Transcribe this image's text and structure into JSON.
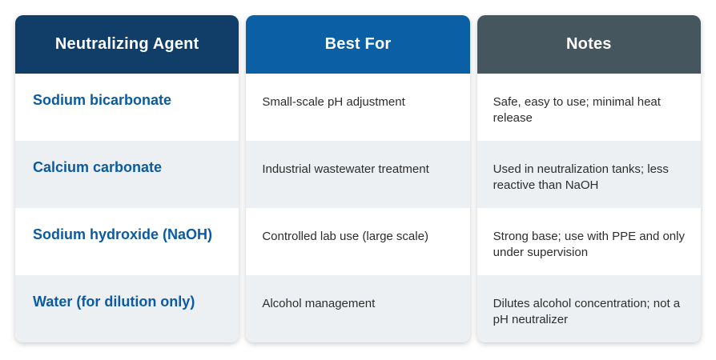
{
  "chart_data": {
    "type": "table",
    "columns": [
      "Neutralizing Agent",
      "Best For",
      "Notes"
    ],
    "rows": [
      [
        "Sodium bicarbonate",
        "Small-scale pH adjustment",
        "Safe, easy to use; minimal heat release"
      ],
      [
        "Calcium carbonate",
        "Industrial wastewater treatment",
        "Used in neutralization tanks; less reactive than NaOH"
      ],
      [
        "Sodium hydroxide (NaOH)",
        "Controlled lab use (large scale)",
        "Strong base; use with PPE and only under supervision"
      ],
      [
        "Water (for dilution only)",
        "Alcohol management",
        "Dilutes alcohol concentration; not a pH neutralizer"
      ]
    ],
    "title": "",
    "legend_position": "none"
  },
  "colors": {
    "canvas_bg": "#ffffff",
    "header_agent_bg": "#103e68",
    "header_bestfor_bg": "#0b5fa4",
    "header_notes_bg": "#45565e",
    "header_text": "#ffffff",
    "agent_text": "#0a5ba3",
    "body_text": "#2d2d2d",
    "row_bg": "#ffffff",
    "row_alt_bg": "#edf0f2"
  }
}
